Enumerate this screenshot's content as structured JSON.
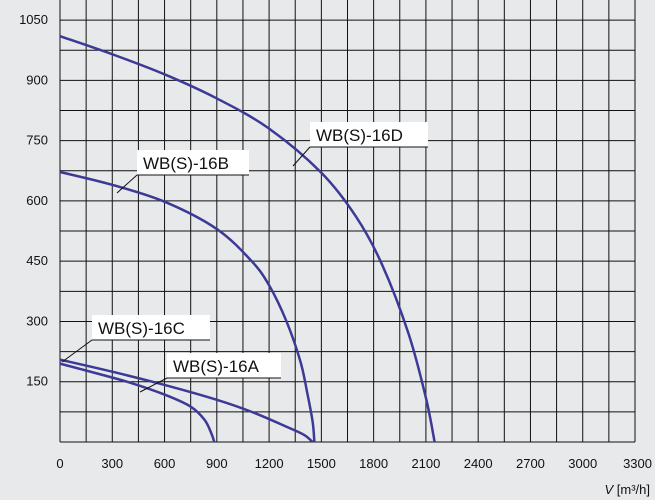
{
  "colors": {
    "background": "#e8e9ea",
    "grid": "#111111",
    "curve": "#3c3a96",
    "label_box": "#ffffff"
  },
  "chart_data": {
    "type": "line",
    "title": "",
    "xlabel": "",
    "ylabel": "",
    "x_unit_label": {
      "symbol": "V",
      "unit": "[m³/h]"
    },
    "xlim": [
      0,
      3300
    ],
    "ylim": [
      0,
      1100
    ],
    "x_ticks": [
      "0",
      "300",
      "600",
      "900",
      "1200",
      "1500",
      "1800",
      "2100",
      "2400",
      "2700",
      "3000",
      "3300"
    ],
    "x_tick_values": [
      0,
      300,
      600,
      900,
      1200,
      1500,
      1800,
      2100,
      2400,
      2700,
      3000,
      3300
    ],
    "y_ticks": [
      "150",
      "300",
      "450",
      "600",
      "750",
      "900",
      "1050"
    ],
    "y_tick_values": [
      150,
      300,
      450,
      600,
      750,
      900,
      1050
    ],
    "grid": {
      "x_step": 150,
      "y_step": 75,
      "visible": true
    },
    "legend": "none (curves labelled directly)",
    "series": [
      {
        "name": "WB(S)-16A",
        "points": [
          [
            0,
            195
          ],
          [
            200,
            172
          ],
          [
            400,
            148
          ],
          [
            600,
            118
          ],
          [
            750,
            88
          ],
          [
            830,
            55
          ],
          [
            870,
            20
          ],
          [
            885,
            0
          ]
        ]
      },
      {
        "name": "WB(S)-16C",
        "points": [
          [
            0,
            205
          ],
          [
            300,
            175
          ],
          [
            600,
            142
          ],
          [
            900,
            105
          ],
          [
            1100,
            75
          ],
          [
            1300,
            38
          ],
          [
            1400,
            18
          ],
          [
            1450,
            0
          ]
        ]
      },
      {
        "name": "WB(S)-16B",
        "points": [
          [
            0,
            672
          ],
          [
            300,
            640
          ],
          [
            600,
            598
          ],
          [
            900,
            530
          ],
          [
            1100,
            450
          ],
          [
            1200,
            390
          ],
          [
            1300,
            300
          ],
          [
            1380,
            200
          ],
          [
            1420,
            120
          ],
          [
            1450,
            50
          ],
          [
            1460,
            0
          ]
        ]
      },
      {
        "name": "WB(S)-16D",
        "points": [
          [
            0,
            1010
          ],
          [
            300,
            965
          ],
          [
            600,
            915
          ],
          [
            900,
            855
          ],
          [
            1200,
            780
          ],
          [
            1500,
            670
          ],
          [
            1700,
            560
          ],
          [
            1850,
            440
          ],
          [
            2000,
            270
          ],
          [
            2100,
            110
          ],
          [
            2150,
            0
          ]
        ]
      }
    ],
    "annotations": [
      {
        "text": "WB(S)-16D",
        "series": "WB(S)-16D",
        "pointer_at": [
          1350,
          740
        ]
      },
      {
        "text": "WB(S)-16B",
        "series": "WB(S)-16B",
        "pointer_at": [
          300,
          630
        ]
      },
      {
        "text": "WB(S)-16C",
        "series": "WB(S)-16C",
        "pointer_at": [
          0,
          205
        ]
      },
      {
        "text": "WB(S)-16A",
        "series": "WB(S)-16A",
        "pointer_at": [
          450,
          140
        ]
      }
    ]
  }
}
